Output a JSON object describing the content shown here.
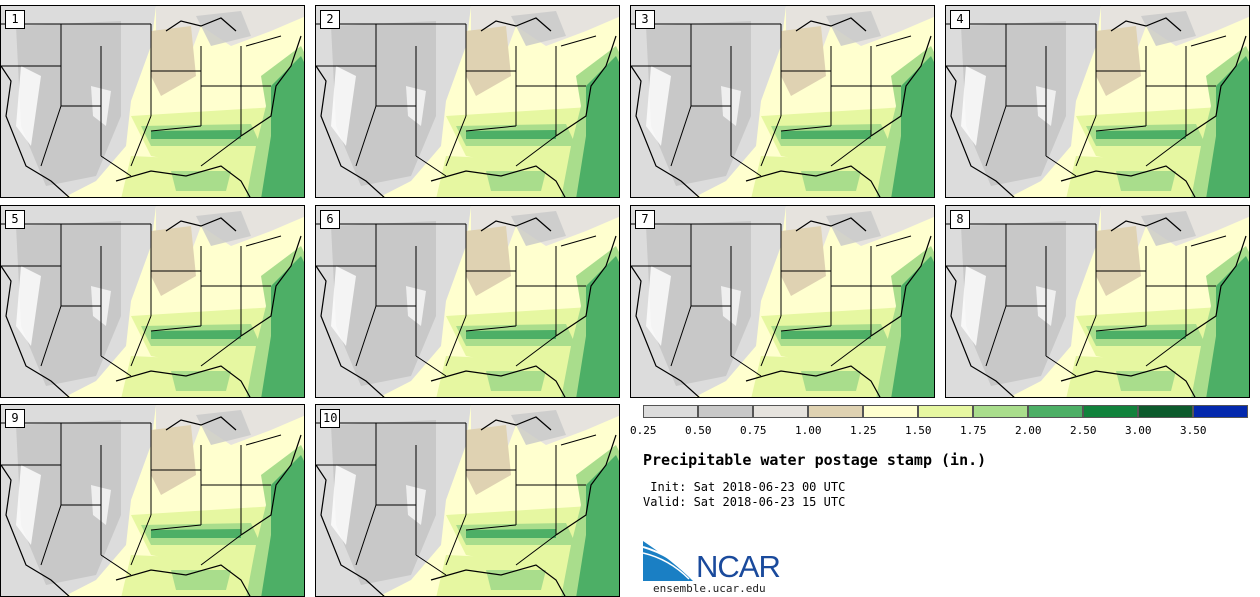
{
  "title": "Precipitable water postage stamp (in.)",
  "init_label": " Init: Sat 2018-06-23 00 UTC",
  "valid_label": "Valid: Sat 2018-06-23 15 UTC",
  "logo_text": "NCAR",
  "site": "ensemble.ucar.edu",
  "members": [
    "1",
    "2",
    "3",
    "4",
    "5",
    "6",
    "7",
    "8",
    "9",
    "10"
  ],
  "legend": {
    "ticks": [
      "0.25",
      "0.50",
      "0.75",
      "1.00",
      "1.25",
      "1.50",
      "1.75",
      "2.00",
      "2.50",
      "3.00",
      "3.50"
    ],
    "colors": [
      "#dcdcdc",
      "#c8c8c8",
      "#e6e3de",
      "#dfd2b2",
      "#ffffcf",
      "#e6f7a1",
      "#a9dd8c",
      "#4daf66",
      "#11823c",
      "#0c5a2c",
      "#0328ad"
    ]
  }
}
